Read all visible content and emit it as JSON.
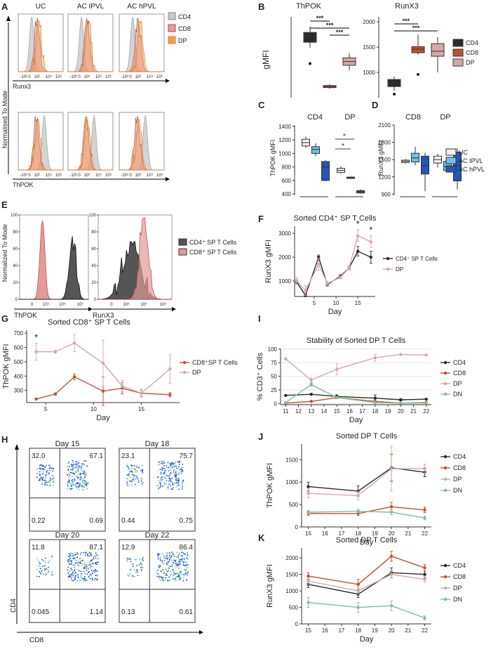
{
  "colors": {
    "cd4": "#2b2b2b",
    "cd8": "#c0502e",
    "dp": "#d4a8a6",
    "dn": "#7fbf9a",
    "histCd4": "#c8c8c8",
    "histCd8": "#e39a9a",
    "histDp": "#f0a050",
    "uc": "#f2f2f2",
    "acIpvl": "#6fc2e8",
    "acHpvl": "#2456b4"
  },
  "panelA": {
    "letter": "A",
    "titles": [
      "UC",
      "AC IPVL",
      "AC hPVL"
    ],
    "legend": [
      "CD4",
      "CD8",
      "DP"
    ],
    "xlabelTop": "Runx3",
    "xlabelBottom": "ThPOK",
    "ylabel": "Normalised To Mode",
    "ticks": [
      "-10³",
      "0",
      "10³",
      "10⁴",
      "10⁵"
    ]
  },
  "panelB": {
    "letter": "B",
    "ylabel": "gMFI",
    "legend": [
      "CD4",
      "CD8",
      "DP"
    ],
    "signif": [
      "***",
      "***",
      "***"
    ]
  },
  "panelC": {
    "letter": "C",
    "ylabel": "ThPOK gMFI",
    "signif": [
      "*",
      "*"
    ]
  },
  "panelD": {
    "letter": "D",
    "ylabel": "RunX3 gMFI",
    "legend": [
      "UC",
      "AC IPVL",
      "AC hPVL"
    ]
  },
  "panelE": {
    "letter": "E",
    "ylabel": "Normalized To Mode",
    "yticks": [
      "0",
      "20",
      "40",
      "60",
      "80",
      "100"
    ],
    "xticks": [
      "0",
      "10³",
      "10⁴",
      "10⁵"
    ],
    "xlabels": [
      "ThPOK",
      "RunX3"
    ],
    "legend": [
      "CD4⁺ SP T Cells",
      "CD8⁺ SP T Cells"
    ]
  },
  "panelH": {
    "letter": "H",
    "xlabel": "CD8",
    "ylabel": "CD4",
    "plots": [
      {
        "title": "Day 15",
        "q": [
          "32.0",
          "67.1",
          "0.22",
          "0.69"
        ]
      },
      {
        "title": "Day 18",
        "q": [
          "23.1",
          "75.7",
          "0.44",
          "0.75"
        ]
      },
      {
        "title": "Day 20",
        "q": [
          "11.8",
          "87.1",
          "0.045",
          "1.14"
        ]
      },
      {
        "title": "Day 22",
        "q": [
          "12.9",
          "86.4",
          "0.13",
          "0.61"
        ]
      }
    ]
  },
  "chart_data": [
    {
      "id": "B-thpok",
      "type": "box",
      "title": "ThPOK",
      "ylabel": "gMFI",
      "ylim": [
        0,
        1400
      ],
      "yticks": [],
      "categories": [
        "CD4",
        "CD8",
        "DP"
      ],
      "boxes": [
        {
          "q1": 960,
          "median": 1070,
          "q3": 1130,
          "lo": 860,
          "hi": 1230,
          "out": [
            590
          ]
        },
        {
          "q1": 175,
          "median": 190,
          "q3": 210,
          "lo": 155,
          "hi": 235,
          "out": []
        },
        {
          "q1": 560,
          "median": 625,
          "q3": 690,
          "lo": 470,
          "hi": 770,
          "out": []
        }
      ],
      "signif": [
        [
          "CD4",
          "CD8",
          "***"
        ],
        [
          "CD4",
          "DP",
          "***"
        ],
        [
          "CD8",
          "DP",
          "***"
        ]
      ]
    },
    {
      "id": "B-runx3",
      "type": "box",
      "title": "RunX3",
      "ylim": [
        500,
        2100
      ],
      "yticks": [
        1000,
        1500,
        2000
      ],
      "categories": [
        "CD4",
        "CD8",
        "DP"
      ],
      "boxes": [
        {
          "q1": 720,
          "median": 780,
          "q3": 860,
          "lo": 640,
          "hi": 920,
          "out": [
            570
          ]
        },
        {
          "q1": 1390,
          "median": 1460,
          "q3": 1510,
          "lo": 1350,
          "hi": 1750,
          "out": [
            960
          ]
        },
        {
          "q1": 1320,
          "median": 1420,
          "q3": 1570,
          "lo": 1000,
          "hi": 1700,
          "out": []
        }
      ],
      "signif": [
        [
          "CD4",
          "CD8",
          "***"
        ],
        [
          "CD4",
          "DP",
          "***"
        ]
      ]
    },
    {
      "id": "C",
      "type": "box",
      "ylabel": "ThPOK gMFI",
      "ylim": [
        380,
        1420
      ],
      "yticks": [
        400,
        600,
        800,
        1000,
        1200,
        1400
      ],
      "groups": [
        "CD4",
        "DP"
      ],
      "series": [
        "UC",
        "AC IPVL",
        "AC hPVL"
      ],
      "boxes": [
        [
          {
            "q1": 1110,
            "median": 1160,
            "q3": 1210,
            "lo": 1080,
            "hi": 1250
          },
          {
            "q1": 1000,
            "median": 1060,
            "q3": 1100,
            "lo": 960,
            "hi": 1150
          },
          {
            "q1": 600,
            "median": 800,
            "q3": 880,
            "lo": 590,
            "hi": 900
          }
        ],
        [
          {
            "q1": 720,
            "median": 750,
            "q3": 780,
            "lo": 700,
            "hi": 810
          },
          {
            "q1": 630,
            "median": 640,
            "q3": 650,
            "lo": 625,
            "hi": 655
          },
          {
            "q1": 415,
            "median": 435,
            "q3": 450,
            "lo": 405,
            "hi": 470
          }
        ]
      ]
    },
    {
      "id": "D",
      "type": "box",
      "ylabel": "RunX3 gMFI",
      "ylim": [
        880,
        2100
      ],
      "yticks": [
        900,
        1200,
        1500,
        1800,
        2100
      ],
      "groups": [
        "CD8",
        "DP"
      ],
      "series": [
        "UC",
        "AC IPVL",
        "AC hPVL"
      ],
      "boxes": [
        [
          {
            "q1": 1450,
            "median": 1470,
            "q3": 1490,
            "lo": 1430,
            "hi": 1510
          },
          {
            "q1": 1460,
            "median": 1530,
            "q3": 1610,
            "lo": 1400,
            "hi": 1720
          },
          {
            "q1": 1250,
            "median": 1400,
            "q3": 1560,
            "lo": 950,
            "hi": 1620
          }
        ],
        [
          {
            "q1": 1440,
            "median": 1500,
            "q3": 1560,
            "lo": 1360,
            "hi": 1600
          },
          {
            "q1": 1310,
            "median": 1380,
            "q3": 1470,
            "lo": 1280,
            "hi": 1510
          },
          {
            "q1": 1130,
            "median": 1400,
            "q3": 1630,
            "lo": 980,
            "hi": 1700
          }
        ]
      ]
    },
    {
      "id": "F",
      "type": "line",
      "title": "Sorted CD4⁺ SP T Cells",
      "xlabel": "Day",
      "ylabel": "RunX3 gMFI",
      "xlim": [
        0.5,
        19
      ],
      "ylim": [
        350,
        3300
      ],
      "xticks": [
        5,
        10,
        15
      ],
      "yticks": [
        1000,
        2000,
        3000
      ],
      "x": [
        1,
        3,
        6,
        8,
        11,
        13,
        15,
        18
      ],
      "series": [
        {
          "name": "CD4⁺ SP T Cells",
          "color": "cd4",
          "y": [
            950,
            400,
            2000,
            850,
            1200,
            1550,
            2250,
            2000
          ],
          "err": [
            100,
            60,
            90,
            60,
            60,
            70,
            200,
            250
          ]
        },
        {
          "name": "DP",
          "color": "dp",
          "y": [
            1000,
            600,
            1700,
            900,
            1150,
            1550,
            2900,
            2650
          ],
          "err": [
            150,
            200,
            250,
            80,
            60,
            80,
            250,
            250
          ]
        }
      ],
      "annotations": [
        {
          "x": 15,
          "text": "*"
        },
        {
          "x": 18,
          "text": "*"
        }
      ]
    },
    {
      "id": "G",
      "type": "line",
      "title": "Sorted CD8⁺ SP T Cells",
      "xlabel": "Day",
      "ylabel": "ThPOK gMFI",
      "xlim": [
        3,
        19
      ],
      "ylim": [
        215,
        720
      ],
      "xticks": [
        5,
        10,
        15
      ],
      "yticks": [
        300,
        400,
        500,
        600,
        700
      ],
      "x": [
        4,
        6,
        8,
        11,
        13,
        15,
        18
      ],
      "series": [
        {
          "name": "CD8⁺SP T Cells",
          "color": "cd8",
          "y": [
            240,
            275,
            395,
            295,
            315,
            280,
            270
          ],
          "err": [
            5,
            8,
            20,
            100,
            40,
            20,
            15
          ]
        },
        {
          "name": "DP",
          "color": "dp",
          "y": [
            570,
            570,
            630,
            490,
            330,
            280,
            450
          ],
          "err": [
            60,
            10,
            60,
            160,
            40,
            30,
            100
          ]
        }
      ],
      "annotations": [
        {
          "x": 4,
          "text": "*"
        }
      ]
    },
    {
      "id": "I",
      "type": "line",
      "title": "Stability of Sorted DP T Cells",
      "xlabel": "Day",
      "ylabel": "% CD3⁺ Cells",
      "xlim": [
        10.6,
        22.4
      ],
      "ylim": [
        -2,
        101
      ],
      "xticks": [
        11,
        12,
        13,
        14,
        15,
        16,
        17,
        18,
        19,
        20,
        21,
        22
      ],
      "yticks": [
        0,
        25,
        50,
        75,
        100
      ],
      "x": [
        11,
        13,
        15,
        18,
        20,
        22
      ],
      "series": [
        {
          "name": "CD4",
          "color": "cd4",
          "y": [
            15,
            17,
            13,
            10,
            7,
            8
          ],
          "err": [
            1,
            1,
            3,
            6,
            2,
            1
          ]
        },
        {
          "name": "CD8",
          "color": "cd8",
          "y": [
            1,
            4,
            11,
            4,
            1,
            2
          ],
          "err": [
            0,
            1,
            2,
            1,
            0,
            1
          ]
        },
        {
          "name": "DP",
          "color": "dp",
          "y": [
            82,
            43,
            63,
            84,
            90,
            89
          ],
          "err": [
            1,
            4,
            10,
            6,
            1,
            1
          ]
        },
        {
          "name": "DN",
          "color": "dn",
          "y": [
            2,
            35,
            11,
            2,
            1,
            1
          ],
          "err": [
            0,
            3,
            2,
            0,
            0,
            0
          ]
        }
      ]
    },
    {
      "id": "J",
      "type": "line",
      "title": "Sorted DP T Cells",
      "xlabel": "Day",
      "ylabel": "ThPOK gMFI",
      "xlim": [
        14.6,
        22.4
      ],
      "ylim": [
        0,
        1850
      ],
      "xticks": [
        15,
        16,
        17,
        18,
        19,
        20,
        21,
        22
      ],
      "yticks": [
        0,
        500,
        1000,
        1500
      ],
      "x": [
        15,
        18,
        20,
        22
      ],
      "series": [
        {
          "name": "CD4",
          "color": "cd4",
          "y": [
            900,
            800,
            1320,
            1220
          ],
          "err": [
            100,
            120,
            300,
            100
          ]
        },
        {
          "name": "CD8",
          "color": "cd8",
          "y": [
            300,
            300,
            450,
            380
          ],
          "err": [
            40,
            40,
            100,
            60
          ]
        },
        {
          "name": "DP",
          "color": "dp",
          "y": [
            750,
            700,
            1300,
            1300
          ],
          "err": [
            100,
            100,
            500,
            100
          ]
        },
        {
          "name": "DN",
          "color": "dn",
          "y": [
            330,
            350,
            330,
            200
          ],
          "err": [
            40,
            40,
            60,
            40
          ]
        }
      ]
    },
    {
      "id": "K",
      "type": "line",
      "title": "Sorted DP T Cells",
      "xlabel": "Day",
      "ylabel": "RunX3 gMFI",
      "xlim": [
        14.6,
        22.4
      ],
      "ylim": [
        0,
        2300
      ],
      "xticks": [
        15,
        16,
        17,
        18,
        19,
        20,
        21,
        22
      ],
      "yticks": [
        0,
        500,
        1000,
        1500,
        2000
      ],
      "x": [
        15,
        18,
        20,
        22
      ],
      "series": [
        {
          "name": "CD4",
          "color": "cd4",
          "y": [
            1200,
            900,
            1550,
            1500
          ],
          "err": [
            100,
            100,
            150,
            100
          ]
        },
        {
          "name": "CD8",
          "color": "cd8",
          "y": [
            1450,
            1200,
            2050,
            1700
          ],
          "err": [
            100,
            150,
            150,
            100
          ]
        },
        {
          "name": "DP",
          "color": "dp",
          "y": [
            1300,
            1000,
            1500,
            1350
          ],
          "err": [
            100,
            100,
            100,
            100
          ]
        },
        {
          "name": "DN",
          "color": "dn",
          "y": [
            650,
            500,
            550,
            180
          ],
          "err": [
            150,
            150,
            150,
            60
          ]
        }
      ]
    }
  ]
}
